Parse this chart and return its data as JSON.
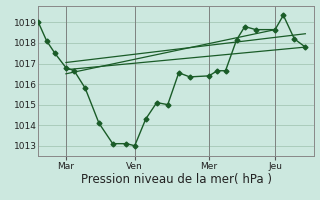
{
  "xlabel": "Pression niveau de la mer( hPa )",
  "bg_color": "#cce8df",
  "grid_color": "#aaccbb",
  "line_color": "#1a5c28",
  "xlim": [
    0,
    100
  ],
  "ylim": [
    1012.5,
    1019.8
  ],
  "yticks": [
    1013,
    1014,
    1015,
    1016,
    1017,
    1018,
    1019
  ],
  "ytick_labels": [
    "1013",
    "1014",
    "1015",
    "1016",
    "1017",
    "1018",
    "1019"
  ],
  "xtick_positions": [
    10,
    35,
    62,
    86
  ],
  "xtick_labels": [
    "Mar",
    "Ven",
    "Mer",
    "Jeu"
  ],
  "line1_x": [
    0,
    3,
    6,
    10,
    13,
    17,
    22,
    27,
    32,
    35,
    39,
    43,
    47,
    51,
    55,
    62,
    65,
    68,
    72,
    75,
    79,
    86,
    89,
    93,
    97
  ],
  "line1_y": [
    1019.0,
    1018.1,
    1017.5,
    1016.8,
    1016.65,
    1015.8,
    1014.1,
    1013.1,
    1013.1,
    1013.0,
    1014.3,
    1015.1,
    1015.0,
    1016.55,
    1016.35,
    1016.4,
    1016.65,
    1016.65,
    1018.15,
    1018.8,
    1018.65,
    1018.65,
    1019.35,
    1018.2,
    1017.8
  ],
  "trend1_x": [
    10,
    97
  ],
  "trend1_y": [
    1016.7,
    1017.8
  ],
  "trend2_x": [
    10,
    86
  ],
  "trend2_y": [
    1016.5,
    1018.65
  ],
  "trend3_x": [
    10,
    97
  ],
  "trend3_y": [
    1017.05,
    1018.45
  ],
  "marker_size": 2.5,
  "line_width": 1.0,
  "trend_lw": 0.9,
  "xlabel_fontsize": 8.5,
  "tick_fontsize": 6.5
}
